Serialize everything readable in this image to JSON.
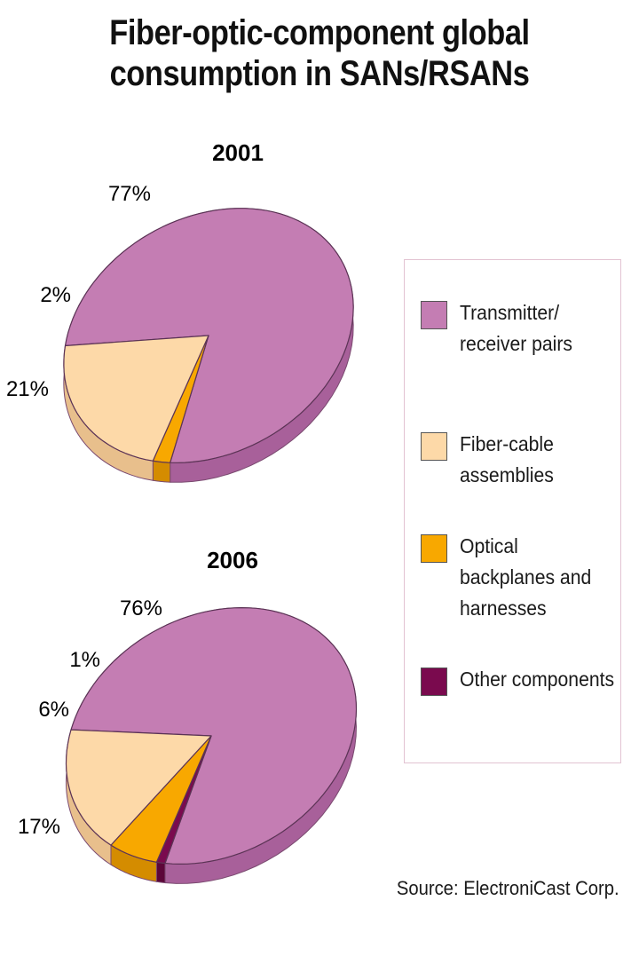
{
  "title_line1": "Fiber-optic-component global",
  "title_line2": "consumption in SANs/RSANs",
  "source": "Source: ElectroniCast Corp.",
  "colors": {
    "transmitter": "#c47db3",
    "transmitter_side": "#a8609a",
    "fiber": "#fdd9a8",
    "fiber_side": "#e8bf8c",
    "optical": "#f8a800",
    "optical_side": "#d48c00",
    "other": "#7a0a4e",
    "other_side": "#5c0639"
  },
  "legend": [
    {
      "key": "transmitter",
      "label": "Transmitter/ receiver pairs"
    },
    {
      "key": "fiber",
      "label": "Fiber-cable assemblies"
    },
    {
      "key": "optical",
      "label": "Optical backplanes and harnesses"
    },
    {
      "key": "other",
      "label": "Other components"
    }
  ],
  "chart_data": [
    {
      "type": "pie",
      "title": "2001",
      "slices": [
        {
          "name": "Transmitter/receiver pairs",
          "value": 77,
          "label": "77%"
        },
        {
          "name": "Optical backplanes and harnesses",
          "value": 2,
          "label": "2%"
        },
        {
          "name": "Fiber-cable assemblies",
          "value": 21,
          "label": "21%"
        }
      ]
    },
    {
      "type": "pie",
      "title": "2006",
      "slices": [
        {
          "name": "Transmitter/receiver pairs",
          "value": 76,
          "label": "76%"
        },
        {
          "name": "Other components",
          "value": 1,
          "label": "1%"
        },
        {
          "name": "Optical backplanes and harnesses",
          "value": 6,
          "label": "6%"
        },
        {
          "name": "Fiber-cable assemblies",
          "value": 17,
          "label": "17%"
        }
      ]
    }
  ]
}
